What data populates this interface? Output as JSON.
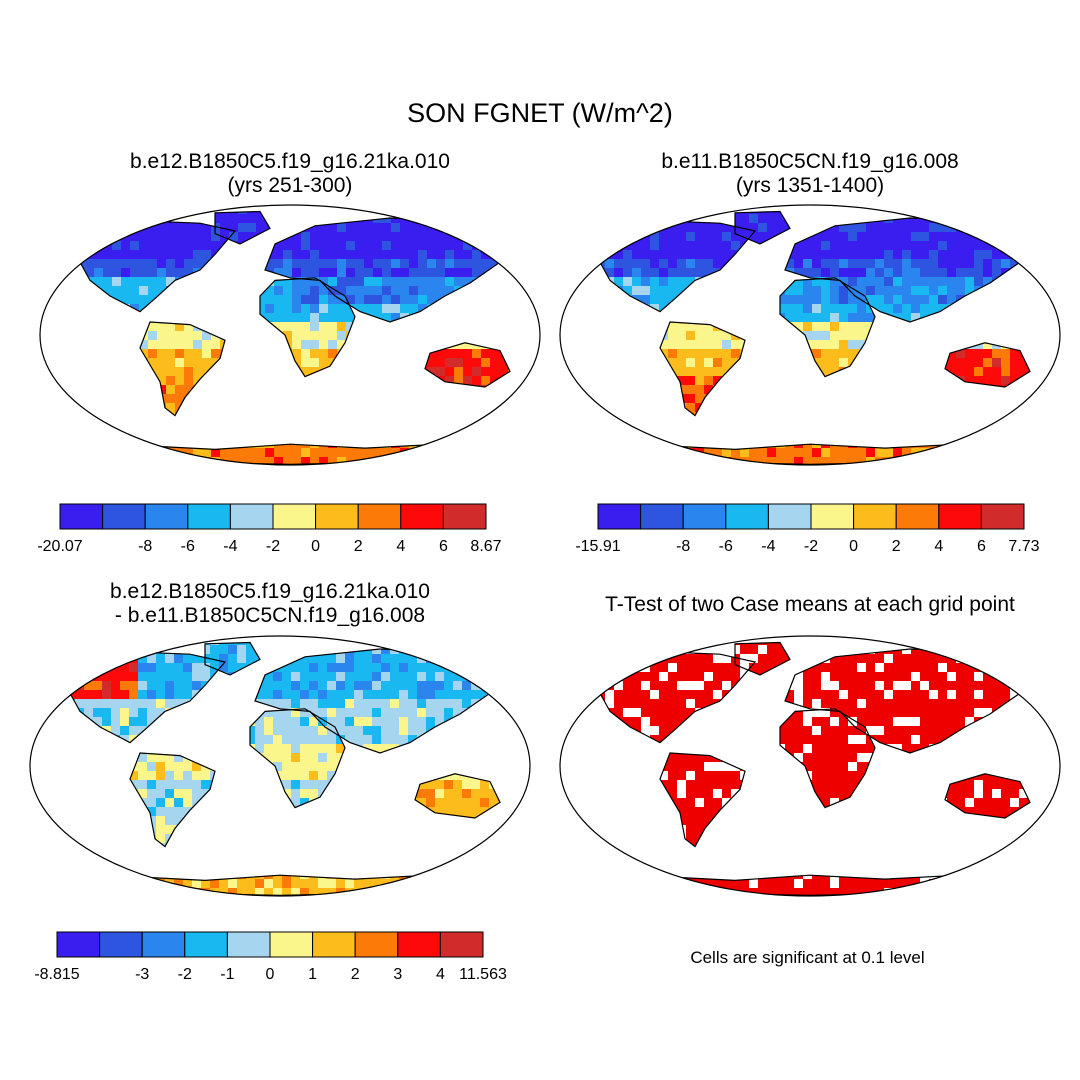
{
  "figure": {
    "title": "SON FGNET (W/m^2)",
    "panels": [
      {
        "id": "case1",
        "title_line1": "b.e12.B1850C5.f19_g16.21ka.010",
        "title_line2": "(yrs 251-300)",
        "colorbar": {
          "labels": [
            "-20.07",
            "-8",
            "-6",
            "-4",
            "-2",
            "0",
            "2",
            "4",
            "6",
            "8.67"
          ],
          "min": -20.07,
          "max": 8.67
        }
      },
      {
        "id": "case2",
        "title_line1": "b.e11.B1850C5CN.f19_g16.008",
        "title_line2": "(yrs 1351-1400)",
        "colorbar": {
          "labels": [
            "-15.91",
            "-8",
            "-6",
            "-4",
            "-2",
            "0",
            "2",
            "4",
            "6",
            "7.73"
          ],
          "min": -15.91,
          "max": 7.73
        }
      },
      {
        "id": "difference",
        "title_line1": "b.e12.B1850C5.f19_g16.21ka.010",
        "title_line2": "- b.e11.B1850C5CN.f19_g16.008",
        "colorbar": {
          "labels": [
            "-8.815",
            "-3",
            "-2",
            "-1",
            "0",
            "1",
            "2",
            "3",
            "4",
            "11.563"
          ],
          "min": -8.815,
          "max": 11.563
        }
      },
      {
        "id": "ttest",
        "title_line1": "T-Test of two Case means at each grid point",
        "note": "Cells are significant at 0.1 level"
      }
    ],
    "colorbar_colors": [
      "#3a1ef0",
      "#2e55e0",
      "#2a86ee",
      "#1ab8f0",
      "#a6d6ef",
      "#fbf68c",
      "#fcbc1c",
      "#fc7a08",
      "#fc0a0a",
      "#d12b2b"
    ],
    "significance_color": "#ee0000"
  }
}
